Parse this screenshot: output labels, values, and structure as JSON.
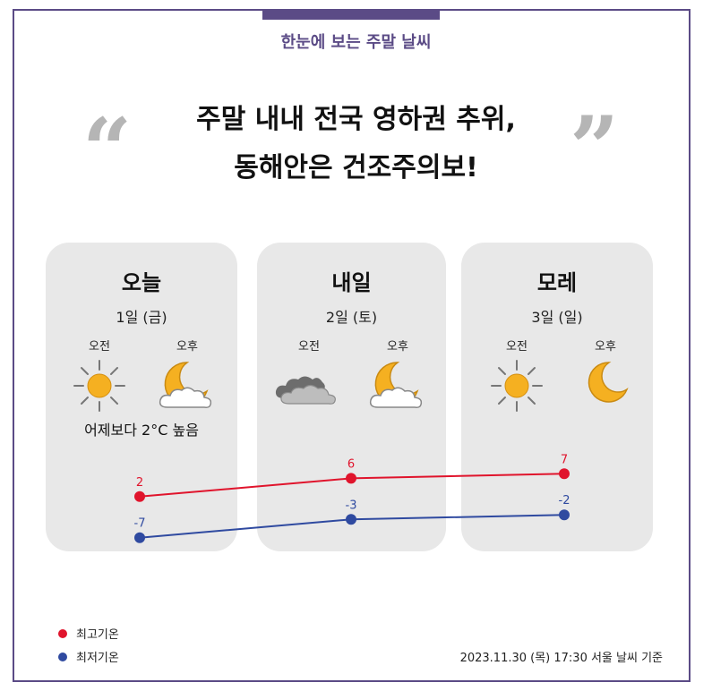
{
  "subtitle": "한눈에 보는 주말 날씨",
  "headline": {
    "line1": "주말 내내 전국 영하권 추위,",
    "line2": "동해안은 건조주의보!"
  },
  "quotes": {
    "open": "“",
    "close": "”"
  },
  "labels": {
    "am": "오전",
    "pm": "오후"
  },
  "days": [
    {
      "name": "오늘",
      "date": "1일 (금)",
      "am_icon": "sun-icon",
      "pm_icon": "moon-cloud-icon",
      "note": "어제보다 2°C 높음"
    },
    {
      "name": "내일",
      "date": "2일 (토)",
      "am_icon": "cloud-icon",
      "pm_icon": "moon-cloud-icon",
      "note": ""
    },
    {
      "name": "모레",
      "date": "3일 (일)",
      "am_icon": "sun-icon",
      "pm_icon": "moon-icon",
      "note": ""
    }
  ],
  "chart_data": {
    "type": "line",
    "categories": [
      "오늘",
      "내일",
      "모레"
    ],
    "series": [
      {
        "name": "최고기온",
        "values": [
          2,
          6,
          7
        ],
        "color": "#e0142c"
      },
      {
        "name": "최저기온",
        "values": [
          -7,
          -3,
          -2
        ],
        "color": "#2f4aa0"
      }
    ],
    "legend_placement": "bottom-left"
  },
  "legend": {
    "high": "최고기온",
    "low": "최저기온"
  },
  "footnote": "2023.11.30 (목) 17:30 서울 날씨 기준",
  "colors": {
    "accent": "#5b4b86",
    "high": "#e0142c",
    "low": "#2f4aa0",
    "card": "#e8e8e8"
  }
}
